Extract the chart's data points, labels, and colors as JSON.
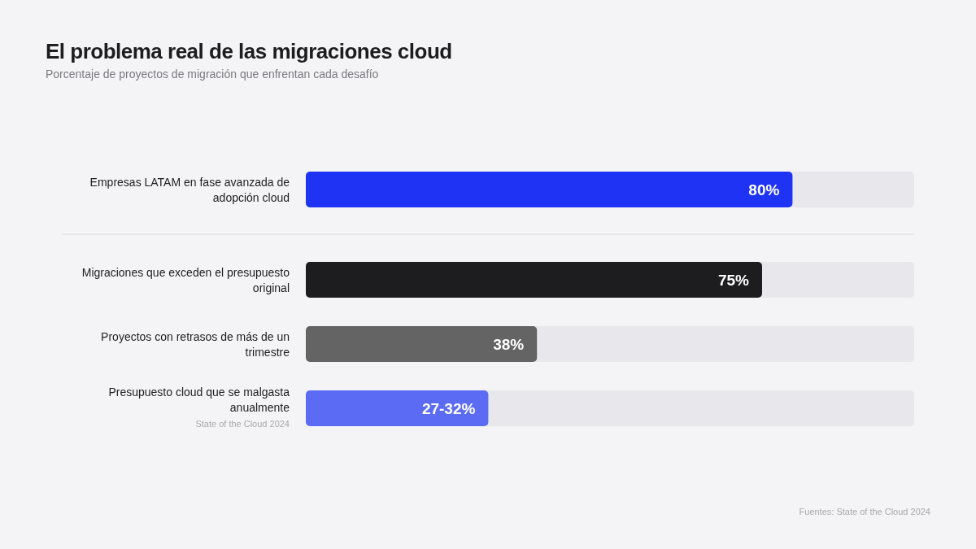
{
  "chart_data": {
    "type": "bar",
    "orientation": "horizontal",
    "title": "El problema real de las migraciones cloud",
    "subtitle": "Porcentaje de proyectos de migración que enfrentan cada desafío",
    "categories": [
      "Empresas LATAM en fase avanzada de adopción cloud",
      "Migraciones que exceden el presupuesto original",
      "Proyectos con retrasos de más de un trimestre",
      "Presupuesto cloud que se malgasta anualmente"
    ],
    "values": [
      80,
      75,
      38,
      30
    ],
    "colors": [
      "#1f33f5",
      "#1d1d1f",
      "#646464",
      "#5b6bf3"
    ],
    "value_labels": [
      "80%",
      "75%",
      "38%",
      null
    ],
    "xlim": [
      0,
      100
    ],
    "annotations": [
      {
        "text": "27-32%",
        "x": 30,
        "y": "Presupuesto cloud que se malgasta anualmente"
      },
      "State of the Cloud 2024",
      "Fuentes: State of the Cloud 2024"
    ]
  }
}
